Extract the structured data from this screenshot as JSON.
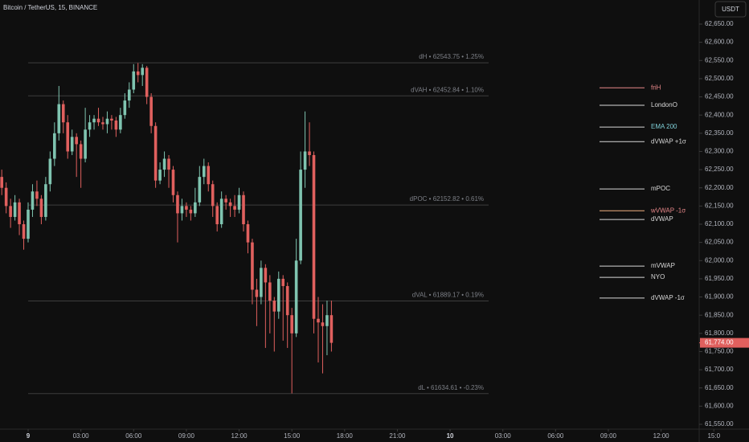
{
  "chart_data": {
    "type": "candlestick",
    "title": "Bitcoin / TetherUS, 15, BINANCE",
    "currency": "USDT",
    "up_color": "#7fc4b0",
    "down_color": "#e0605e",
    "x": [
      -1.5,
      -1.25,
      -1,
      -0.75,
      -0.5,
      -0.25,
      0,
      0.25,
      0.5,
      0.75,
      1,
      1.25,
      1.5,
      1.75,
      2,
      2.25,
      2.5,
      2.75,
      3,
      3.25,
      3.5,
      3.75,
      4,
      4.25,
      4.5,
      4.75,
      5,
      5.25,
      5.5,
      5.75,
      6,
      6.25,
      6.5,
      6.75,
      7,
      7.25,
      7.5,
      7.75,
      8,
      8.25,
      8.5,
      8.75,
      9,
      9.25,
      9.5,
      9.75,
      10,
      10.25,
      10.5,
      10.75,
      11,
      11.25,
      11.5,
      11.75,
      12,
      12.25,
      12.5,
      12.75,
      13,
      13.25,
      13.5,
      13.75,
      14,
      14.25,
      14.5,
      14.75,
      15,
      15.25,
      15.5,
      15.75,
      16,
      16.25,
      16.5,
      16.75,
      17,
      17.25
    ],
    "open": [
      62230,
      62200,
      62150,
      62120,
      62160,
      62100,
      62060,
      62140,
      62190,
      62170,
      62120,
      62210,
      62280,
      62350,
      62430,
      62380,
      62300,
      62340,
      62320,
      62280,
      62360,
      62380,
      62390,
      62380,
      62375,
      62390,
      62385,
      62360,
      62400,
      62440,
      62470,
      62520,
      62510,
      62530,
      62450,
      62370,
      62220,
      62250,
      62280,
      62250,
      62180,
      62130,
      62150,
      62140,
      62130,
      62160,
      62230,
      62260,
      62210,
      62150,
      62100,
      62170,
      62160,
      62150,
      62140,
      62180,
      62100,
      62050,
      61920,
      61900,
      61980,
      61940,
      61890,
      61860,
      61950,
      61930,
      61850,
      61800,
      62000,
      62250,
      62300,
      62290,
      61840,
      61830,
      61820,
      61850
    ],
    "high": [
      62250,
      62215,
      62170,
      62180,
      62170,
      62110,
      62160,
      62210,
      62220,
      62180,
      62230,
      62300,
      62380,
      62480,
      62440,
      62400,
      62360,
      62350,
      62330,
      62420,
      62400,
      62400,
      62420,
      62395,
      62410,
      62400,
      62395,
      62420,
      62460,
      62490,
      62540,
      62543,
      62540,
      62535,
      62460,
      62380,
      62270,
      62300,
      62290,
      62260,
      62190,
      62170,
      62160,
      62150,
      62200,
      62260,
      62280,
      62270,
      62220,
      62160,
      62190,
      62180,
      62170,
      62180,
      62200,
      62190,
      62110,
      62060,
      61950,
      62000,
      61990,
      61960,
      61900,
      61970,
      61960,
      61940,
      61870,
      62060,
      62300,
      62410,
      62380,
      62300,
      61900,
      61880,
      61890,
      61890
    ],
    "low": [
      62180,
      62130,
      62090,
      62110,
      62070,
      62030,
      62050,
      62120,
      62150,
      62100,
      62110,
      62190,
      62260,
      62330,
      62350,
      62280,
      62290,
      62230,
      62200,
      62270,
      62340,
      62360,
      62370,
      62360,
      62350,
      62360,
      62340,
      62350,
      62390,
      62420,
      62460,
      62490,
      62480,
      62430,
      62350,
      62200,
      62210,
      62230,
      62200,
      62160,
      62050,
      62110,
      62120,
      62110,
      62120,
      62150,
      62210,
      62190,
      62120,
      62080,
      62090,
      62140,
      62120,
      62120,
      62130,
      62080,
      62020,
      61880,
      61820,
      61880,
      61760,
      61800,
      61750,
      61840,
      61780,
      61760,
      61635,
      61790,
      61990,
      62200,
      62260,
      61800,
      61720,
      61690,
      61740,
      61750
    ],
    "close": [
      62200,
      62150,
      62120,
      62160,
      62100,
      62060,
      62140,
      62190,
      62170,
      62120,
      62210,
      62280,
      62350,
      62430,
      62380,
      62300,
      62340,
      62320,
      62280,
      62360,
      62380,
      62390,
      62380,
      62375,
      62390,
      62385,
      62360,
      62400,
      62440,
      62470,
      62520,
      62510,
      62530,
      62450,
      62370,
      62220,
      62250,
      62280,
      62250,
      62180,
      62130,
      62150,
      62140,
      62130,
      62160,
      62230,
      62260,
      62210,
      62150,
      62100,
      62170,
      62160,
      62150,
      62140,
      62180,
      62100,
      62050,
      61920,
      61900,
      61980,
      61940,
      61890,
      61860,
      61950,
      61930,
      61850,
      61800,
      62000,
      62250,
      62300,
      62290,
      61840,
      61830,
      61820,
      61850,
      61774
    ],
    "xlim": [
      -1.6,
      41
    ],
    "xticks": [
      {
        "value": 0,
        "label": "9"
      },
      {
        "value": 3,
        "label": "03:00"
      },
      {
        "value": 6,
        "label": "06:00"
      },
      {
        "value": 9,
        "label": "09:00"
      },
      {
        "value": 12,
        "label": "12:00"
      },
      {
        "value": 15,
        "label": "15:00"
      },
      {
        "value": 18,
        "label": "18:00"
      },
      {
        "value": 21,
        "label": "21:00"
      },
      {
        "value": 24,
        "label": "10"
      },
      {
        "value": 27,
        "label": "03:00"
      },
      {
        "value": 30,
        "label": "06:00"
      },
      {
        "value": 33,
        "label": "09:00"
      },
      {
        "value": 36,
        "label": "12:00"
      },
      {
        "value": 39,
        "label": "15:0"
      }
    ],
    "ylim": [
      61550,
      62650
    ],
    "yticks": [
      {
        "value": 61550,
        "label": "61,550.00"
      },
      {
        "value": 61600,
        "label": "61,600.00"
      },
      {
        "value": 61650,
        "label": "61,650.00"
      },
      {
        "value": 61700,
        "label": "61,700.00"
      },
      {
        "value": 61750,
        "label": "61,750.00"
      },
      {
        "value": 61800,
        "label": "61,800.00"
      },
      {
        "value": 61850,
        "label": "61,850.00"
      },
      {
        "value": 61900,
        "label": "61,900.00"
      },
      {
        "value": 61950,
        "label": "61,950.00"
      },
      {
        "value": 62000,
        "label": "62,000.00"
      },
      {
        "value": 62050,
        "label": "62,050.00"
      },
      {
        "value": 62100,
        "label": "62,100.00"
      },
      {
        "value": 62150,
        "label": "62,150.00"
      },
      {
        "value": 62200,
        "label": "62,200.00"
      },
      {
        "value": 62250,
        "label": "62,250.00"
      },
      {
        "value": 62300,
        "label": "62,300.00"
      },
      {
        "value": 62350,
        "label": "62,350.00"
      },
      {
        "value": 62400,
        "label": "62,400.00"
      },
      {
        "value": 62450,
        "label": "62,450.00"
      },
      {
        "value": 62500,
        "label": "62,500.00"
      },
      {
        "value": 62550,
        "label": "62,550.00"
      },
      {
        "value": 62600,
        "label": "62,600.00"
      },
      {
        "value": 62650,
        "label": "62,650.00"
      }
    ],
    "last_price": {
      "value": 61774,
      "label": "61,774.00"
    },
    "levels": [
      {
        "label": "dH • 62543.75 • 1.25%",
        "value": 62543.75
      },
      {
        "label": "dVAH • 62452.84 • 1.10%",
        "value": 62452.84
      },
      {
        "label": "dPOC • 62152.82 • 0.61%",
        "value": 62152.82
      },
      {
        "label": "dVAL • 61889.17 • 0.19%",
        "value": 61889.17
      },
      {
        "label": "dL • 61634.61 • -0.23%",
        "value": 61634.61
      }
    ],
    "markers": [
      {
        "label": "friH",
        "value": 62475,
        "color": "#e8888a",
        "text_color": "#e8888a"
      },
      {
        "label": "LondonO",
        "value": 62427,
        "color": "#d8d8d8",
        "text_color": "#d8d8d8"
      },
      {
        "label": "EMA 200",
        "value": 62367,
        "color": "#d8d8d8",
        "text_color": "#7fd0d8"
      },
      {
        "label": "dVWAP +1σ",
        "value": 62327,
        "color": "#d8d8d8",
        "text_color": "#d8d8d8"
      },
      {
        "label": "mPOC",
        "value": 62197,
        "color": "#d8d8d8",
        "text_color": "#d8d8d8"
      },
      {
        "label": "wVWAP -1σ",
        "value": 62137,
        "color": "#f0b080",
        "text_color": "#e8888a"
      },
      {
        "label": "dVWAP",
        "value": 62113,
        "color": "#d8d8d8",
        "text_color": "#d8d8d8"
      },
      {
        "label": "mVWAP",
        "value": 61985,
        "color": "#d8d8d8",
        "text_color": "#d8d8d8"
      },
      {
        "label": "NYO",
        "value": 61954,
        "color": "#d8d8d8",
        "text_color": "#d8d8d8"
      },
      {
        "label": "dVWAP -1σ",
        "value": 61897,
        "color": "#d8d8d8",
        "text_color": "#d8d8d8"
      }
    ]
  }
}
